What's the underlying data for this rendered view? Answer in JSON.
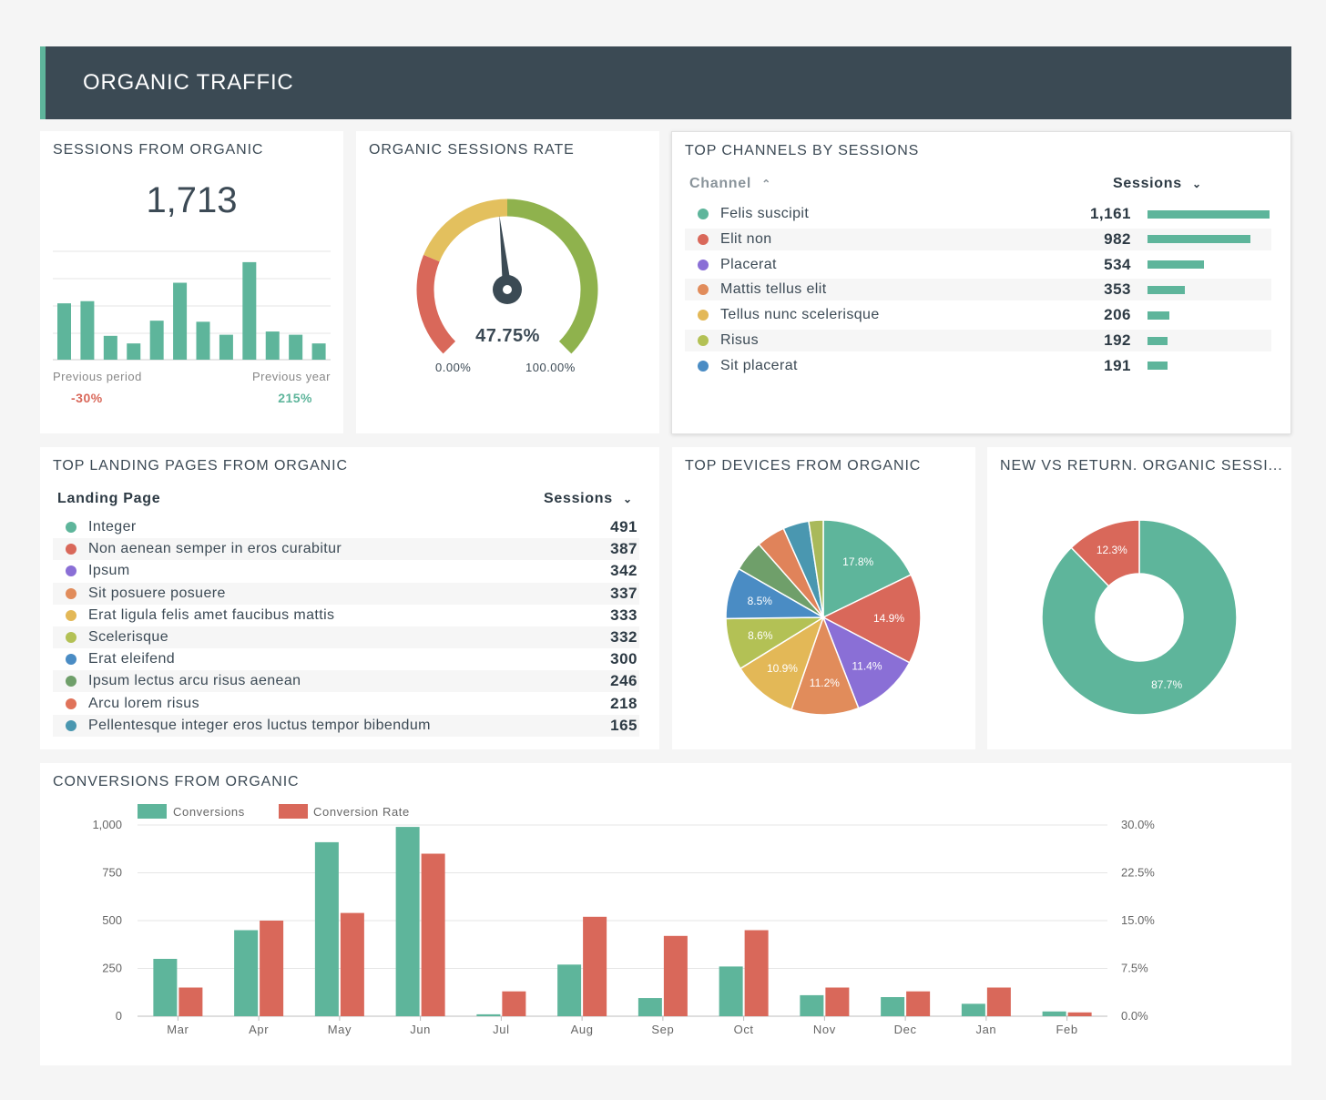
{
  "header": {
    "title": "ORGANIC TRAFFIC"
  },
  "sessions_from_organic": {
    "title": "SESSIONS FROM ORGANIC",
    "value": "1,713",
    "previous_period_label": "Previous period",
    "previous_period_change": "-30%",
    "previous_year_label": "Previous year",
    "previous_year_change": "215%",
    "sparkline_values": [
      0.52,
      0.54,
      0.22,
      0.15,
      0.36,
      0.71,
      0.35,
      0.23,
      0.9,
      0.26,
      0.23,
      0.15
    ]
  },
  "organic_sessions_rate": {
    "title": "ORGANIC SESSIONS RATE",
    "value_label": "47.75%",
    "value": 47.75,
    "min_label": "0.00%",
    "max_label": "100.00%"
  },
  "top_channels": {
    "title": "TOP CHANNELS BY SESSIONS",
    "col_channel": "Channel",
    "col_sessions": "Sessions",
    "rows": [
      {
        "label": "Felis suscipit",
        "value": "1,161",
        "num": 1161,
        "color": "#5eb59b"
      },
      {
        "label": "Elit non",
        "value": "982",
        "num": 982,
        "color": "#d9685a"
      },
      {
        "label": "Placerat",
        "value": "534",
        "num": 534,
        "color": "#8a6fd6"
      },
      {
        "label": "Mattis tellus elit",
        "value": "353",
        "num": 353,
        "color": "#e18c5b"
      },
      {
        "label": "Tellus nunc scelerisque",
        "value": "206",
        "num": 206,
        "color": "#e3b857"
      },
      {
        "label": "Risus",
        "value": "192",
        "num": 192,
        "color": "#b3c155"
      },
      {
        "label": "Sit placerat",
        "value": "191",
        "num": 191,
        "color": "#4a8cc4"
      }
    ]
  },
  "top_landing_pages": {
    "title": "TOP LANDING PAGES FROM ORGANIC",
    "col_page": "Landing Page",
    "col_sessions": "Sessions",
    "rows": [
      {
        "label": "Integer",
        "value": "491",
        "color": "#5eb59b"
      },
      {
        "label": "Non aenean semper in eros curabitur",
        "value": "387",
        "color": "#d9685a"
      },
      {
        "label": "Ipsum",
        "value": "342",
        "color": "#8a6fd6"
      },
      {
        "label": "Sit posuere posuere",
        "value": "337",
        "color": "#e18c5b"
      },
      {
        "label": "Erat ligula felis amet faucibus mattis",
        "value": "333",
        "color": "#e3b857"
      },
      {
        "label": "Scelerisque",
        "value": "332",
        "color": "#b3c155"
      },
      {
        "label": "Erat eleifend",
        "value": "300",
        "color": "#4a8cc4"
      },
      {
        "label": "Ipsum lectus arcu risus aenean",
        "value": "246",
        "color": "#6f9f6a"
      },
      {
        "label": "Arcu lorem risus",
        "value": "218",
        "color": "#e0735a"
      },
      {
        "label": "Pellentesque integer eros luctus tempor bibendum",
        "value": "165",
        "color": "#4a97b0"
      }
    ]
  },
  "top_devices": {
    "title": "TOP DEVICES FROM ORGANIC",
    "slices": [
      {
        "value": 17.8,
        "label": "17.8%",
        "color": "#5eb59b"
      },
      {
        "value": 14.9,
        "label": "14.9%",
        "color": "#d9685a"
      },
      {
        "value": 11.4,
        "label": "11.4%",
        "color": "#8a6fd6"
      },
      {
        "value": 11.2,
        "label": "11.2%",
        "color": "#e18c5b"
      },
      {
        "value": 10.9,
        "label": "10.9%",
        "color": "#e3b857"
      },
      {
        "value": 8.6,
        "label": "8.6%",
        "color": "#b3c155"
      },
      {
        "value": 8.5,
        "label": "8.5%",
        "color": "#4a8cc4"
      },
      {
        "value": 5.2,
        "label": "",
        "color": "#6f9f6a"
      },
      {
        "value": 4.8,
        "label": "",
        "color": "#e0835a"
      },
      {
        "value": 4.3,
        "label": "",
        "color": "#4a97b0"
      },
      {
        "value": 2.4,
        "label": "",
        "color": "#a9b95a"
      }
    ]
  },
  "new_vs_returning": {
    "title": "NEW VS RETURN. ORGANIC SESSI...",
    "slices": [
      {
        "value": 87.7,
        "label": "87.7%",
        "color": "#5eb59b"
      },
      {
        "value": 12.3,
        "label": "12.3%",
        "color": "#d9685a"
      }
    ]
  },
  "conversions": {
    "title": "CONVERSIONS FROM ORGANIC",
    "chart_data": {
      "type": "bar",
      "categories": [
        "Mar",
        "Apr",
        "May",
        "Jun",
        "Jul",
        "Aug",
        "Sep",
        "Oct",
        "Nov",
        "Dec",
        "Jan",
        "Feb"
      ],
      "series": [
        {
          "name": "Conversions",
          "axis": "left",
          "color": "#5eb59b",
          "values": [
            300,
            450,
            910,
            990,
            10,
            270,
            95,
            260,
            110,
            100,
            65,
            25
          ]
        },
        {
          "name": "Conversion Rate",
          "axis": "right",
          "color": "#d9685a",
          "values": [
            4.5,
            15.0,
            16.2,
            25.5,
            3.9,
            15.6,
            12.6,
            13.5,
            4.5,
            3.9,
            4.5,
            0.6
          ]
        }
      ],
      "left_ticks": [
        "0",
        "250",
        "500",
        "750",
        "1,000"
      ],
      "right_ticks": [
        "0.0%",
        "7.5%",
        "15.0%",
        "22.5%",
        "30.0%"
      ],
      "ylim_left": [
        0,
        1000
      ],
      "ylim_right": [
        0,
        30
      ],
      "grid": true,
      "legend": "top-left"
    }
  }
}
